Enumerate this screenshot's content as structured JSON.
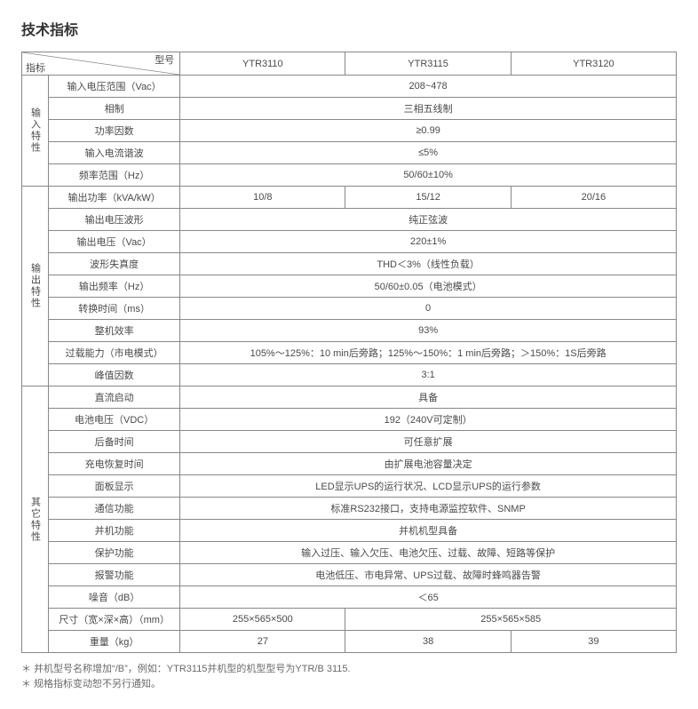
{
  "title": "技术指标",
  "header": {
    "diag_top": "型号",
    "diag_bottom": "指标",
    "models": [
      "YTR3110",
      "YTR3115",
      "YTR3120"
    ]
  },
  "sections": [
    {
      "group": "输入特性",
      "rows": [
        {
          "label": "输入电压范围（Vac）",
          "cells": [
            {
              "span": 3,
              "text": "208~478"
            }
          ]
        },
        {
          "label": "相制",
          "cells": [
            {
              "span": 3,
              "text": "三相五线制"
            }
          ]
        },
        {
          "label": "功率因数",
          "cells": [
            {
              "span": 3,
              "text": "≥0.99"
            }
          ]
        },
        {
          "label": "输入电流谐波",
          "cells": [
            {
              "span": 3,
              "text": "≤5%"
            }
          ]
        },
        {
          "label": "频率范围（Hz）",
          "cells": [
            {
              "span": 3,
              "text": "50/60±10%"
            }
          ]
        }
      ]
    },
    {
      "group": "输出特性",
      "rows": [
        {
          "label": "输出功率（kVA/kW）",
          "cells": [
            {
              "span": 1,
              "text": "10/8"
            },
            {
              "span": 1,
              "text": "15/12"
            },
            {
              "span": 1,
              "text": "20/16"
            }
          ]
        },
        {
          "label": "输出电压波形",
          "cells": [
            {
              "span": 3,
              "text": "纯正弦波"
            }
          ]
        },
        {
          "label": "输出电压（Vac）",
          "cells": [
            {
              "span": 3,
              "text": "220±1%"
            }
          ]
        },
        {
          "label": "波形失真度",
          "cells": [
            {
              "span": 3,
              "text": "THD＜3%（线性负载）"
            }
          ]
        },
        {
          "label": "输出频率（Hz）",
          "cells": [
            {
              "span": 3,
              "text": "50/60±0.05（电池模式）"
            }
          ]
        },
        {
          "label": "转换时间（ms）",
          "cells": [
            {
              "span": 3,
              "text": "0"
            }
          ]
        },
        {
          "label": "整机效率",
          "cells": [
            {
              "span": 3,
              "text": "93%"
            }
          ]
        },
        {
          "label": "过载能力（市电模式）",
          "cells": [
            {
              "span": 3,
              "text": "105%～125%：10 min后旁路；125%～150%：1 min后旁路；＞150%：1S后旁路"
            }
          ]
        },
        {
          "label": "峰值因数",
          "cells": [
            {
              "span": 3,
              "text": "3:1"
            }
          ]
        }
      ]
    },
    {
      "group": "其它特性",
      "rows": [
        {
          "label": "直流启动",
          "cells": [
            {
              "span": 3,
              "text": "具备"
            }
          ]
        },
        {
          "label": "电池电压（VDC）",
          "cells": [
            {
              "span": 3,
              "text": "192（240V可定制）"
            }
          ]
        },
        {
          "label": "后备时间",
          "cells": [
            {
              "span": 3,
              "text": "可任意扩展"
            }
          ]
        },
        {
          "label": "充电恢复时间",
          "cells": [
            {
              "span": 3,
              "text": "由扩展电池容量决定"
            }
          ]
        },
        {
          "label": "面板显示",
          "cells": [
            {
              "span": 3,
              "text": "LED显示UPS的运行状况、LCD显示UPS的运行参数"
            }
          ]
        },
        {
          "label": "通信功能",
          "cells": [
            {
              "span": 3,
              "text": "标准RS232接口，支持电源监控软件、SNMP"
            }
          ]
        },
        {
          "label": "并机功能",
          "cells": [
            {
              "span": 3,
              "text": "并机机型具备"
            }
          ]
        },
        {
          "label": "保护功能",
          "cells": [
            {
              "span": 3,
              "text": "输入过压、输入欠压、电池欠压、过载、故障、短路等保护"
            }
          ]
        },
        {
          "label": "报警功能",
          "cells": [
            {
              "span": 3,
              "text": "电池低压、市电异常、UPS过载、故障时蜂鸣器告警"
            }
          ]
        },
        {
          "label": "噪音（dB）",
          "cells": [
            {
              "span": 3,
              "text": "＜65"
            }
          ]
        },
        {
          "label": "尺寸（宽×深×高）（mm）",
          "cells": [
            {
              "span": 1,
              "text": "255×565×500"
            },
            {
              "span": 2,
              "text": "255×565×585"
            }
          ]
        },
        {
          "label": "重量（kg）",
          "cells": [
            {
              "span": 1,
              "text": "27"
            },
            {
              "span": 1,
              "text": "38"
            },
            {
              "span": 1,
              "text": "39"
            }
          ]
        }
      ]
    }
  ],
  "notes": [
    "＊ 并机型号名称增加“/B”，例如：YTR3115并机型的机型型号为YTR/B 3115.",
    "＊ 规格指标变动恕不另行通知。"
  ],
  "style": {
    "border_color": "#888888",
    "text_color": "#4a4a4a",
    "title_color": "#333333",
    "font_size_cell": 11,
    "font_size_title": 16
  }
}
